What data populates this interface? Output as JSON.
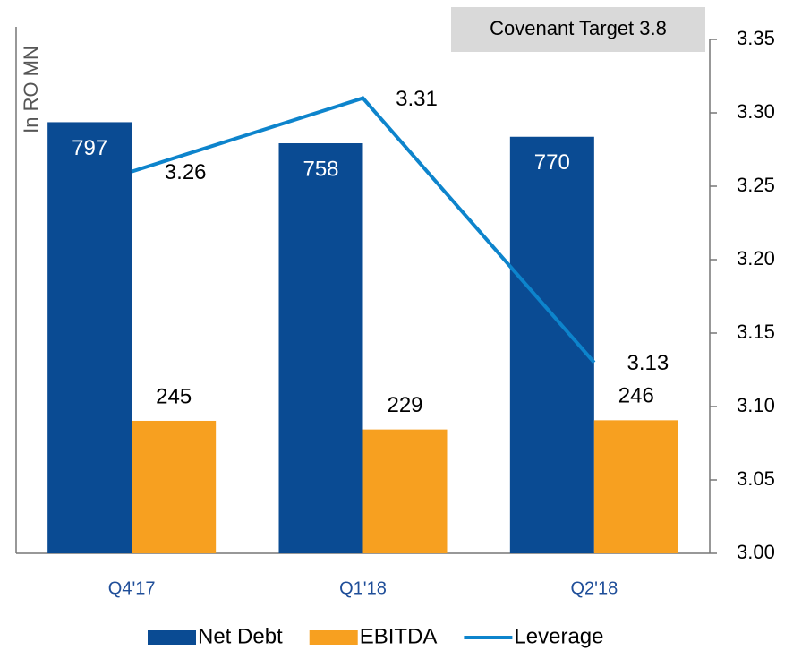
{
  "chart_data": {
    "type": "bar",
    "annotation": "Covenant Target 3.8",
    "ylabel": "In RO MN",
    "categories": [
      "Q4'17",
      "Q1'18",
      "Q2'18"
    ],
    "series": [
      {
        "name": "Net Debt",
        "color": "#0a4b93",
        "values": [
          797,
          758,
          770
        ]
      },
      {
        "name": "EBITDA",
        "color": "#f7a020",
        "values": [
          245,
          229,
          246
        ]
      },
      {
        "name": "Leverage",
        "type": "line",
        "axis": "y2",
        "color": "#0d84cc",
        "values": [
          3.26,
          3.31,
          3.13
        ]
      }
    ],
    "ylim": [
      0,
      950
    ],
    "y2lim": [
      3.0,
      3.35
    ],
    "y2ticks": [
      {
        "value": 3.0,
        "label": "3.00"
      },
      3.05,
      {
        "value": 3.1,
        "label": "3.10"
      },
      3.15,
      {
        "value": 3.2,
        "label": "3.20"
      },
      3.25,
      {
        "value": 3.3,
        "label": "3.30"
      },
      3.35
    ],
    "legend": "bottom"
  }
}
